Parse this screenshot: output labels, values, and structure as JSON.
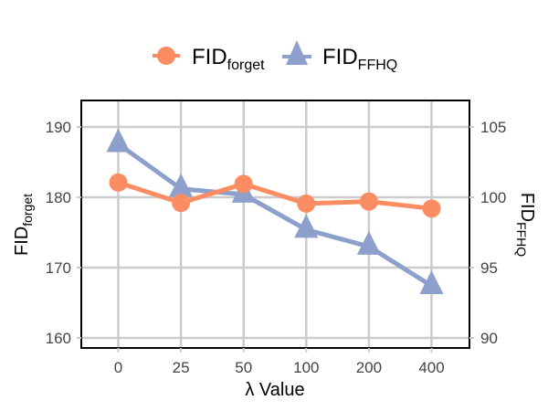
{
  "chart_data": {
    "type": "line",
    "title": "",
    "xlabel": "λ Value",
    "ylabel": "FID_forget",
    "ylabel_right": "FID_FFHQ",
    "categories": [
      "0",
      "25",
      "50",
      "100",
      "200",
      "400"
    ],
    "series": [
      {
        "name": "FID_forget",
        "axis": "left",
        "marker": "circle",
        "color": "#fc8d62",
        "values": [
          182.1,
          179.2,
          181.9,
          179.1,
          179.4,
          178.4
        ]
      },
      {
        "name": "FID_FFHQ",
        "axis": "right",
        "marker": "triangle",
        "color": "#8da0cb",
        "values": [
          103.8,
          100.6,
          100.2,
          97.7,
          96.5,
          93.7
        ]
      }
    ],
    "left_axis": {
      "ticks": [
        160,
        170,
        180,
        190
      ],
      "ylim": [
        158.5,
        193.7
      ]
    },
    "right_axis": {
      "ticks": [
        90,
        95,
        100,
        105
      ],
      "ylim": [
        89.2,
        106.9
      ]
    },
    "grid": true,
    "legend_position": "top-center"
  },
  "legend": {
    "items": [
      {
        "base": "FID",
        "sub": "forget"
      },
      {
        "base": "FID",
        "sub": "FFHQ"
      }
    ]
  },
  "axes": {
    "left_label_base": "FID",
    "left_label_sub": "forget",
    "right_label_base": "FID",
    "right_label_sub": "FFHQ",
    "x_label": "λ Value"
  }
}
